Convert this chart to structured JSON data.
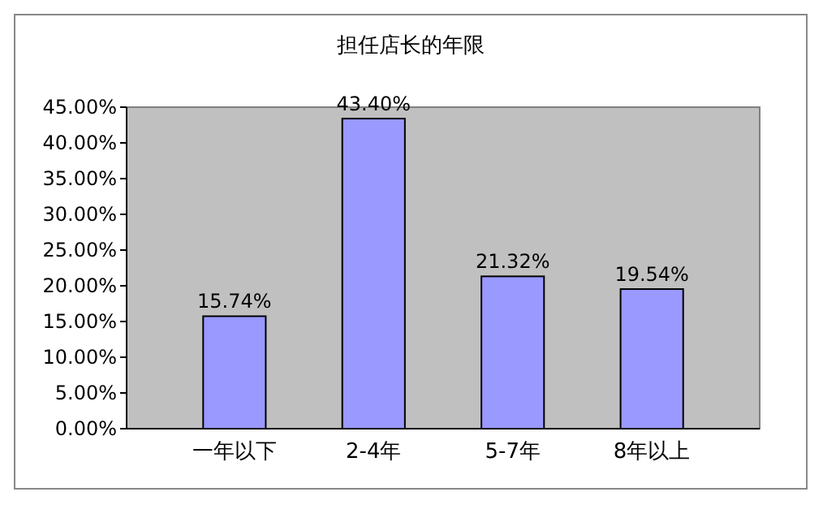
{
  "chart_data": {
    "type": "bar",
    "title": "担任店长的年限",
    "categories": [
      "一年以下",
      "2-4年",
      "5-7年",
      "8年以上"
    ],
    "values": [
      15.74,
      43.4,
      21.32,
      19.54
    ],
    "value_labels": [
      "15.74%",
      "43.40%",
      "21.32%",
      "19.54%"
    ],
    "color": "#9999ff",
    "ylim": [
      0,
      45
    ],
    "yticks": [
      {
        "value": 0,
        "label": "0.00%"
      },
      {
        "value": 5,
        "label": "5.00%"
      },
      {
        "value": 10,
        "label": "10.00%"
      },
      {
        "value": 15,
        "label": "15.00%"
      },
      {
        "value": 20,
        "label": "20.00%"
      },
      {
        "value": 25,
        "label": "25.00%"
      },
      {
        "value": 30,
        "label": "30.00%"
      },
      {
        "value": 35,
        "label": "35.00%"
      },
      {
        "value": 40,
        "label": "40.00%"
      },
      {
        "value": 45,
        "label": "45.00%"
      }
    ]
  }
}
